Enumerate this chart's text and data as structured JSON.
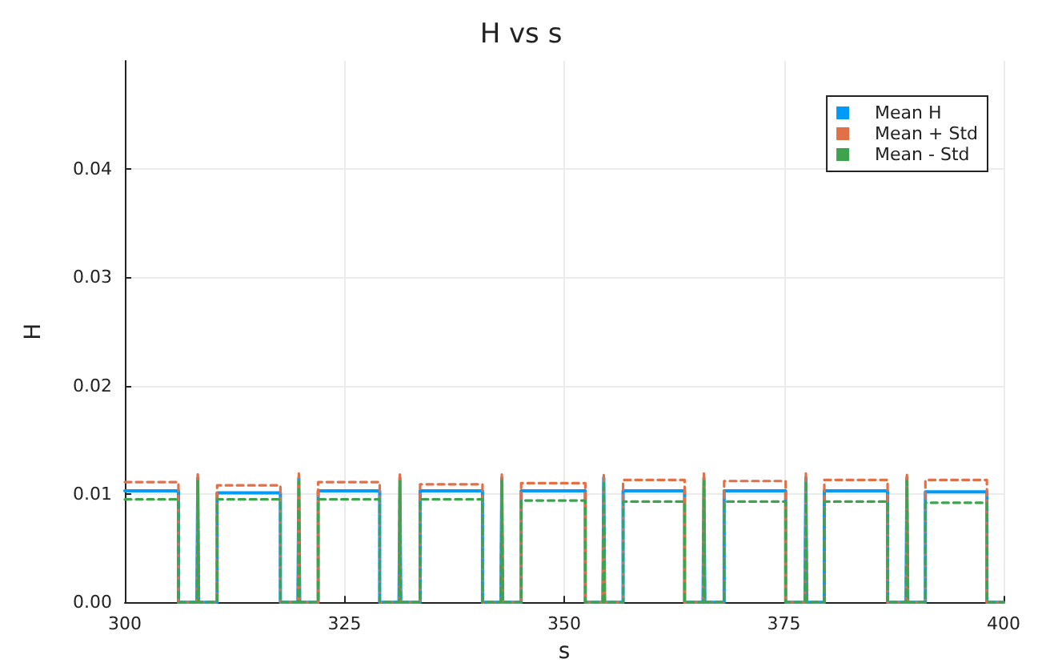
{
  "chart_data": {
    "type": "line",
    "title": "H vs s",
    "xlabel": "s",
    "ylabel": "H",
    "x": [
      300,
      306.1,
      306.1,
      308.2,
      308.3,
      308.4,
      310.5,
      310.5,
      317.7,
      317.7,
      319.7,
      319.8,
      319.9,
      322.0,
      322.0,
      329.0,
      329.0,
      331.2,
      331.3,
      331.4,
      333.6,
      333.6,
      340.7,
      340.7,
      342.8,
      342.9,
      343.0,
      345.1,
      345.1,
      352.4,
      352.4,
      354.4,
      354.5,
      354.6,
      356.7,
      356.7,
      363.7,
      363.7,
      365.8,
      365.9,
      366.0,
      368.2,
      368.2,
      375.2,
      375.2,
      377.4,
      377.5,
      377.6,
      379.6,
      379.6,
      386.8,
      386.8,
      388.9,
      389.0,
      389.1,
      391.1,
      391.1,
      398.1,
      398.1,
      400
    ],
    "series": [
      {
        "name": "Mean H",
        "color": "#009af9",
        "line_style": "solid",
        "values": [
          0.0103,
          0.0103,
          0,
          0,
          0.0115,
          0,
          0,
          0.0101,
          0.0101,
          0,
          0,
          0.0115,
          0,
          0,
          0.0103,
          0.0103,
          0,
          0,
          0.0115,
          0,
          0,
          0.0103,
          0.0103,
          0,
          0,
          0.0115,
          0,
          0,
          0.0103,
          0.0103,
          0,
          0,
          0.0115,
          0,
          0,
          0.0103,
          0.0103,
          0,
          0,
          0.0115,
          0,
          0,
          0.0103,
          0.0103,
          0,
          0,
          0.0115,
          0,
          0,
          0.0103,
          0.0103,
          0,
          0,
          0.0115,
          0,
          0,
          0.0102,
          0.0102,
          0,
          0
        ]
      },
      {
        "name": "Mean + Std",
        "color": "#e26f46",
        "line_style": "dashed",
        "values": [
          0.0111,
          0.0111,
          0,
          0,
          0.0119,
          0,
          0,
          0.0108,
          0.0108,
          0,
          0,
          0.0119,
          0,
          0,
          0.0111,
          0.0111,
          0,
          0,
          0.0119,
          0,
          0,
          0.0109,
          0.0109,
          0,
          0,
          0.0119,
          0,
          0,
          0.011,
          0.011,
          0,
          0,
          0.0119,
          0,
          0,
          0.0113,
          0.0113,
          0,
          0,
          0.0119,
          0,
          0,
          0.0112,
          0.0112,
          0,
          0,
          0.0119,
          0,
          0,
          0.0113,
          0.0113,
          0,
          0,
          0.0119,
          0,
          0,
          0.0113,
          0.0113,
          0,
          0
        ]
      },
      {
        "name": "Mean - Std",
        "color": "#3da44d",
        "line_style": "dashed",
        "values": [
          0.0095,
          0.0095,
          0,
          0,
          0.0112,
          0,
          0,
          0.0095,
          0.0095,
          0,
          0,
          0.0112,
          0,
          0,
          0.0095,
          0.0095,
          0,
          0,
          0.0112,
          0,
          0,
          0.0095,
          0.0095,
          0,
          0,
          0.0112,
          0,
          0,
          0.0094,
          0.0094,
          0,
          0,
          0.0112,
          0,
          0,
          0.0093,
          0.0093,
          0,
          0,
          0.0112,
          0,
          0,
          0.0093,
          0.0093,
          0,
          0,
          0.0112,
          0,
          0,
          0.0093,
          0.0093,
          0,
          0,
          0.0112,
          0,
          0,
          0.0092,
          0.0092,
          0,
          0
        ]
      }
    ],
    "xlim": [
      300,
      400
    ],
    "xticks": [
      300,
      325,
      350,
      375,
      400
    ],
    "ylim": [
      0,
      0.05
    ],
    "yticks": [
      {
        "value": 0,
        "label": "0.00"
      },
      {
        "value": 0.01,
        "label": "0.01"
      },
      {
        "value": 0.02,
        "label": "0.02"
      },
      {
        "value": 0.03,
        "label": "0.03"
      },
      {
        "value": 0.04,
        "label": "0.04"
      }
    ],
    "grid": true,
    "legend": "top right",
    "marker": "none"
  }
}
